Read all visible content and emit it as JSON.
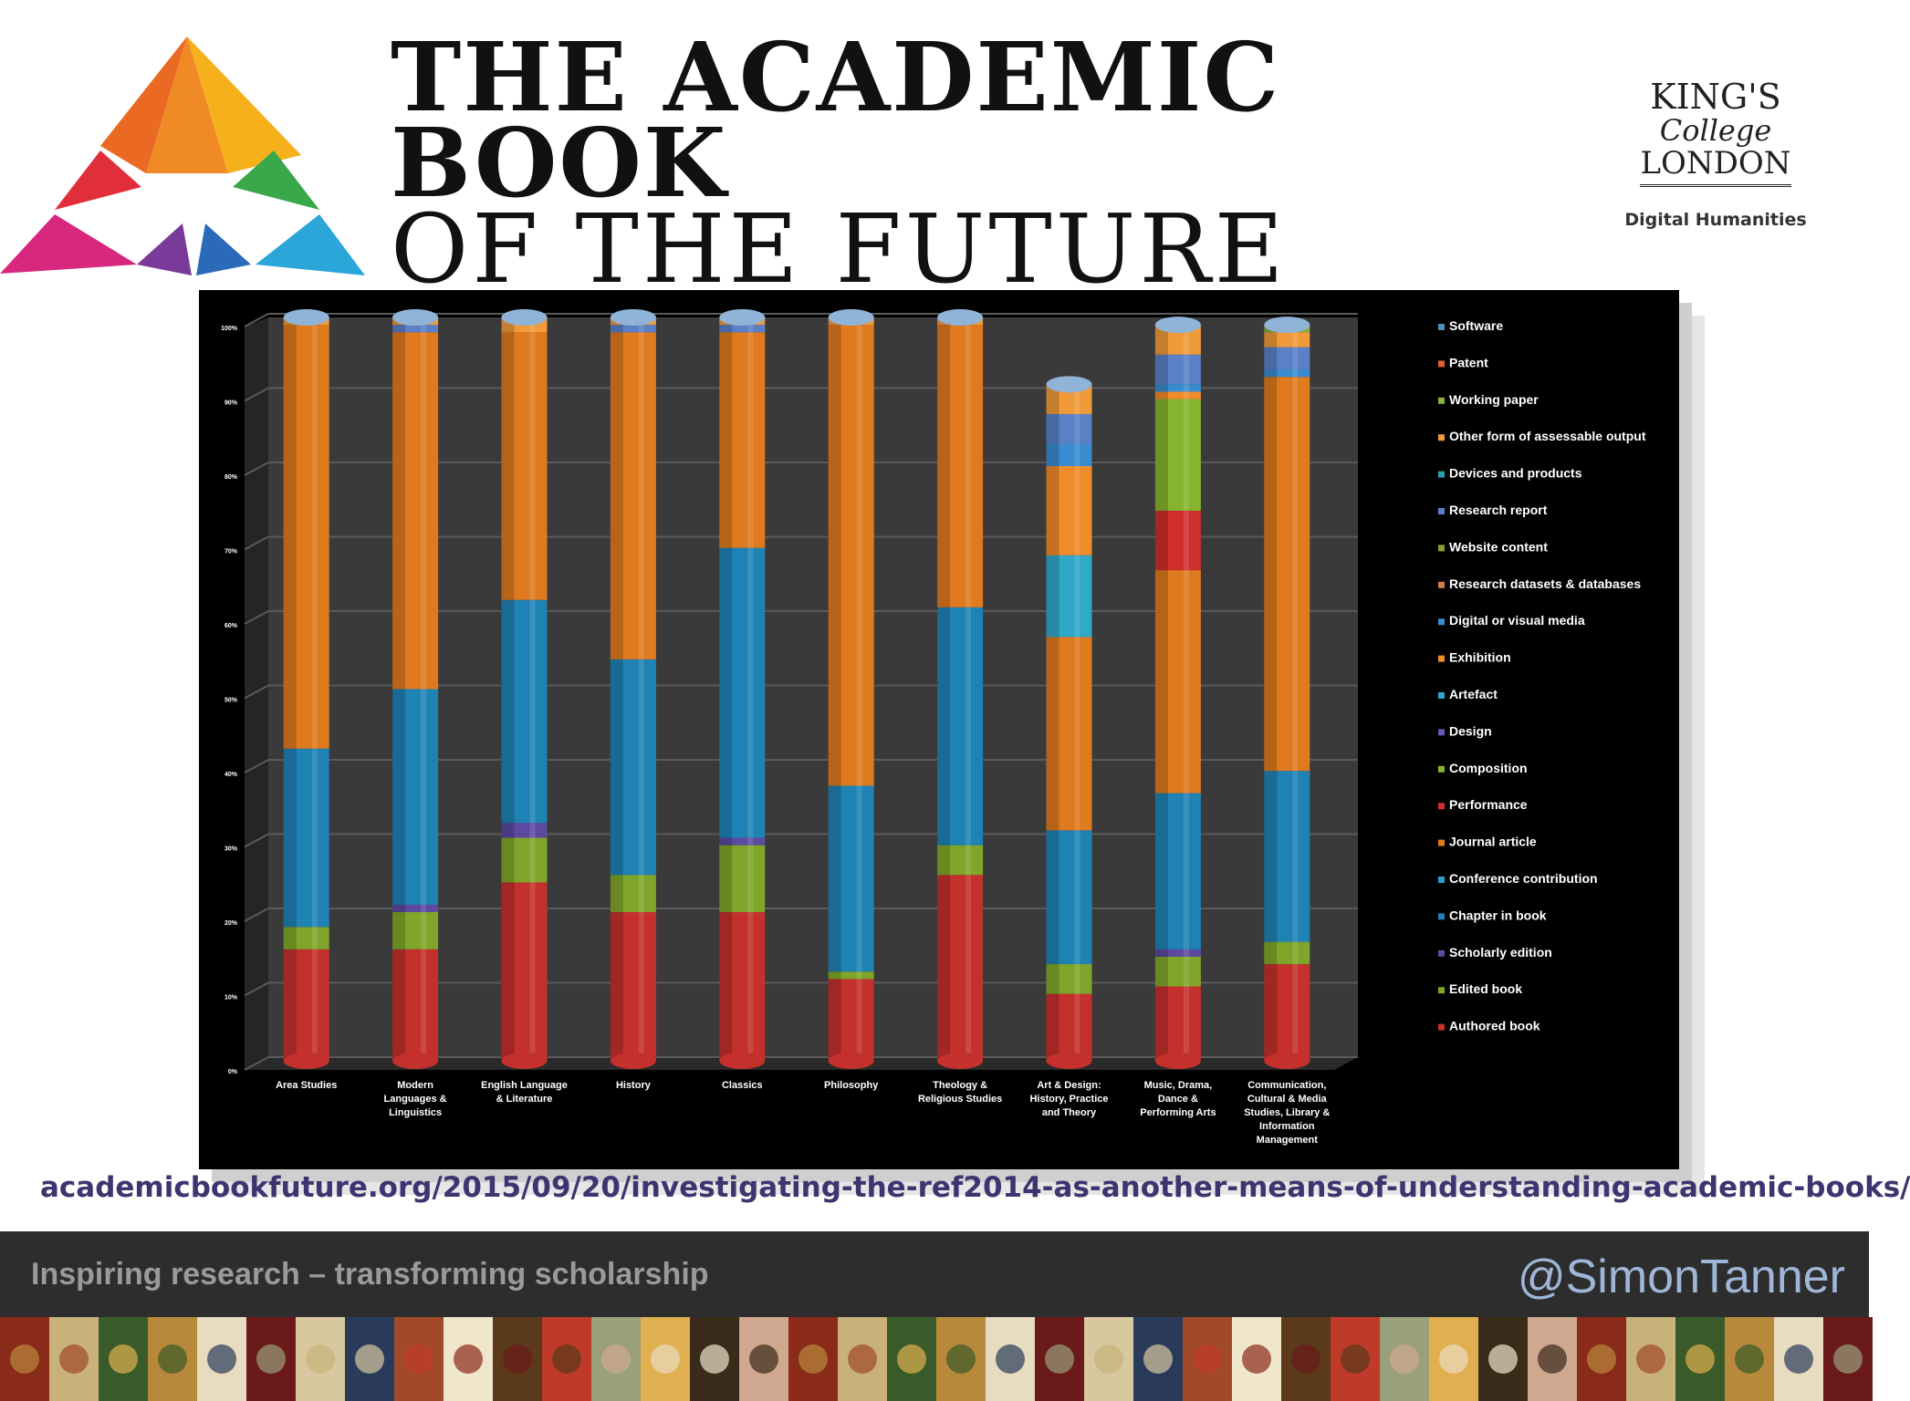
{
  "header": {
    "title_line1": "THE ACADEMIC",
    "title_line2": "BOOK",
    "title_line3": "OF THE FUTURE",
    "kings_line1": "KING'S",
    "kings_line2": "College",
    "kings_line3": "LONDON",
    "department": "Digital Humanities"
  },
  "source_url": "academicbookfuture.org/2015/09/20/investigating-the-ref2014-as-another-means-of-understanding-academic-books/",
  "footer": {
    "tagline": "Inspiring research – transforming scholarship",
    "handle": "@SimonTanner"
  },
  "chart_data": {
    "type": "bar",
    "stacked": true,
    "orientation": "vertical",
    "ylim": [
      0,
      100
    ],
    "y_ticks": [
      "0%",
      "10%",
      "20%",
      "30%",
      "40%",
      "50%",
      "60%",
      "70%",
      "80%",
      "90%",
      "100%"
    ],
    "grid": true,
    "legend_position": "right",
    "categories": [
      [
        "Area Studies"
      ],
      [
        "Modern",
        "Languages &",
        "Linguistics"
      ],
      [
        "English Language",
        "& Literature"
      ],
      [
        "History"
      ],
      [
        "Classics"
      ],
      [
        "Philosophy"
      ],
      [
        "Theology &",
        "Religious Studies"
      ],
      [
        "Art & Design:",
        "History, Practice",
        "and Theory"
      ],
      [
        "Music, Drama,",
        "Dance &",
        "Performing Arts"
      ],
      [
        "Communication,",
        "Cultural & Media",
        "Studies, Library &",
        "Information",
        "Management"
      ]
    ],
    "series": [
      {
        "name": "Authored book",
        "color": "#c4302b",
        "values": [
          15,
          15,
          24,
          20,
          20,
          11,
          25,
          9,
          10,
          13
        ]
      },
      {
        "name": "Edited book",
        "color": "#7fa62a",
        "values": [
          3,
          5,
          6,
          5,
          9,
          1,
          4,
          4,
          4,
          3
        ]
      },
      {
        "name": "Scholarly edition",
        "color": "#5b4aa0",
        "values": [
          0,
          1,
          2,
          0,
          1,
          0,
          0,
          0,
          1,
          0
        ]
      },
      {
        "name": "Chapter in book",
        "color": "#1f82b5",
        "values": [
          24,
          29,
          30,
          29,
          39,
          25,
          32,
          18,
          21,
          23
        ]
      },
      {
        "name": "Conference contribution",
        "color": "#2aa3c9",
        "values": [
          0,
          0,
          0,
          0,
          0,
          0,
          0,
          0,
          0,
          0
        ]
      },
      {
        "name": "Journal article",
        "color": "#e07a1f",
        "values": [
          57,
          48,
          36,
          44,
          29,
          62,
          38,
          26,
          30,
          53
        ]
      },
      {
        "name": "Performance",
        "color": "#d02d2d",
        "values": [
          0,
          0,
          0,
          0,
          0,
          0,
          0,
          0,
          8,
          0
        ]
      },
      {
        "name": "Composition",
        "color": "#85b52e",
        "values": [
          0,
          0,
          0,
          0,
          0,
          0,
          0,
          0,
          15,
          0
        ]
      },
      {
        "name": "Design",
        "color": "#6a56b0",
        "values": [
          0,
          0,
          0,
          0,
          0,
          0,
          0,
          0,
          0,
          0
        ]
      },
      {
        "name": "Artefact",
        "color": "#30a8c8",
        "values": [
          0,
          0,
          0,
          0,
          0,
          0,
          0,
          11,
          0,
          0
        ]
      },
      {
        "name": "Exhibition",
        "color": "#f08c2a",
        "values": [
          0,
          0,
          0,
          0,
          0,
          0,
          0,
          12,
          1,
          0
        ]
      },
      {
        "name": "Digital or visual media",
        "color": "#3a8cd0",
        "values": [
          0,
          0,
          0,
          0,
          0,
          0,
          0,
          3,
          1,
          1
        ]
      },
      {
        "name": "Research datasets & databases",
        "color": "#d07a50",
        "values": [
          0,
          0,
          0,
          0,
          0,
          0,
          0,
          0,
          0,
          0
        ]
      },
      {
        "name": "Website content",
        "color": "#8aa030",
        "values": [
          0,
          0,
          0,
          0,
          0,
          0,
          0,
          0,
          0,
          0
        ]
      },
      {
        "name": "Research report",
        "color": "#5a80c8",
        "values": [
          0,
          1,
          0,
          1,
          1,
          0,
          0,
          4,
          4,
          3
        ]
      },
      {
        "name": "Devices and products",
        "color": "#28a0b0",
        "values": [
          0,
          0,
          0,
          0,
          0,
          0,
          0,
          0,
          0,
          0
        ]
      },
      {
        "name": "Other form of assessable output",
        "color": "#f09a3a",
        "values": [
          1,
          1,
          2,
          1,
          1,
          1,
          1,
          4,
          4,
          2
        ]
      },
      {
        "name": "Working paper",
        "color": "#88b040",
        "values": [
          0,
          0,
          0,
          0,
          0,
          0,
          0,
          0,
          0,
          1
        ]
      },
      {
        "name": "Patent",
        "color": "#e06030",
        "values": [
          0,
          0,
          0,
          0,
          0,
          0,
          0,
          0,
          0,
          0
        ]
      },
      {
        "name": "Software",
        "color": "#5090b8",
        "values": [
          0,
          0,
          0,
          0,
          0,
          0,
          0,
          0,
          0,
          0
        ]
      }
    ]
  }
}
